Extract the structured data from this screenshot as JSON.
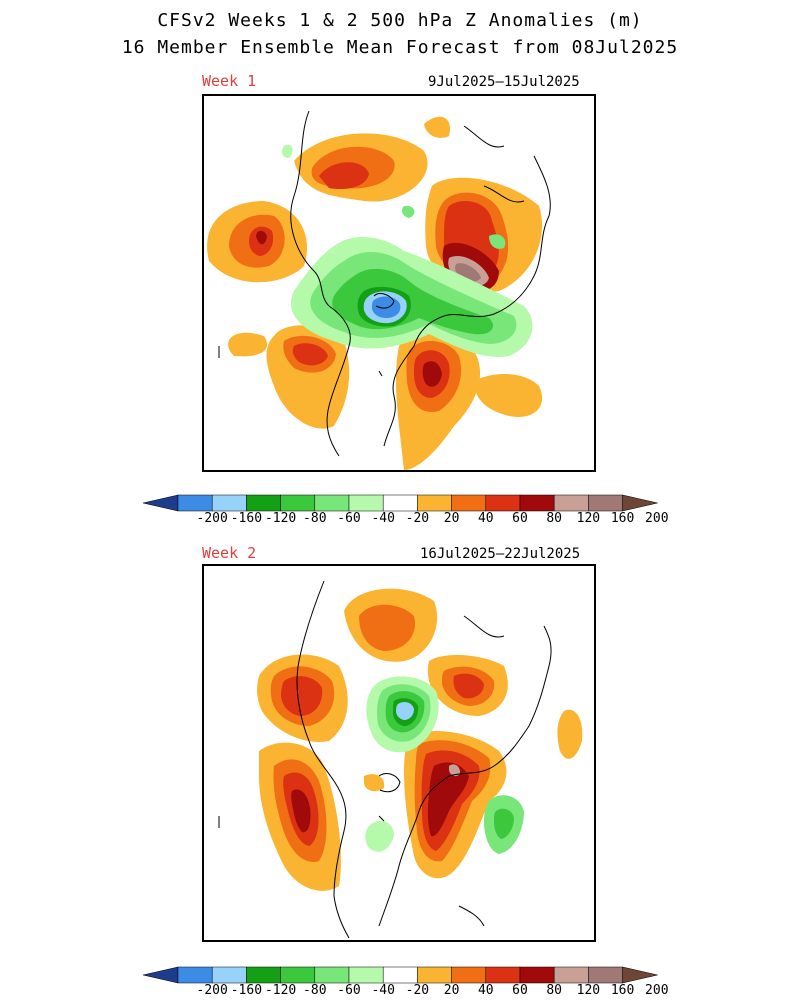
{
  "header": {
    "title_line1": "CFSv2 Weeks 1 & 2 500 hPa Z Anomalies (m)",
    "title_line2": "16 Member Ensemble Mean Forecast from 08Jul2025"
  },
  "panels": [
    {
      "label": "Week 1",
      "dates": "9Jul2025–15Jul2025"
    },
    {
      "label": "Week 2",
      "dates": "16Jul2025–22Jul2025"
    }
  ],
  "legend": {
    "tick_labels": [
      "-200",
      "-160",
      "-120",
      "-80",
      "-60",
      "-40",
      "-20",
      "20",
      "40",
      "60",
      "80",
      "120",
      "160",
      "200"
    ],
    "colors": {
      "below_-200": "#1e3c8c",
      "-200_-160": "#3c8ce6",
      "-160_-120": "#96d2fa",
      "-120_-80": "#14a014",
      "-80_-60": "#3cc83c",
      "-60_-40": "#78e678",
      "-40_-20": "#b4faaa",
      "-20_20": "#ffffff",
      "20_40": "#fab432",
      "40_60": "#f06e14",
      "60_80": "#dc3214",
      "80_120": "#a00a0a",
      "120_160": "#c8a096",
      "160_200": "#a07876",
      "above_200": "#6e4636"
    }
  }
}
